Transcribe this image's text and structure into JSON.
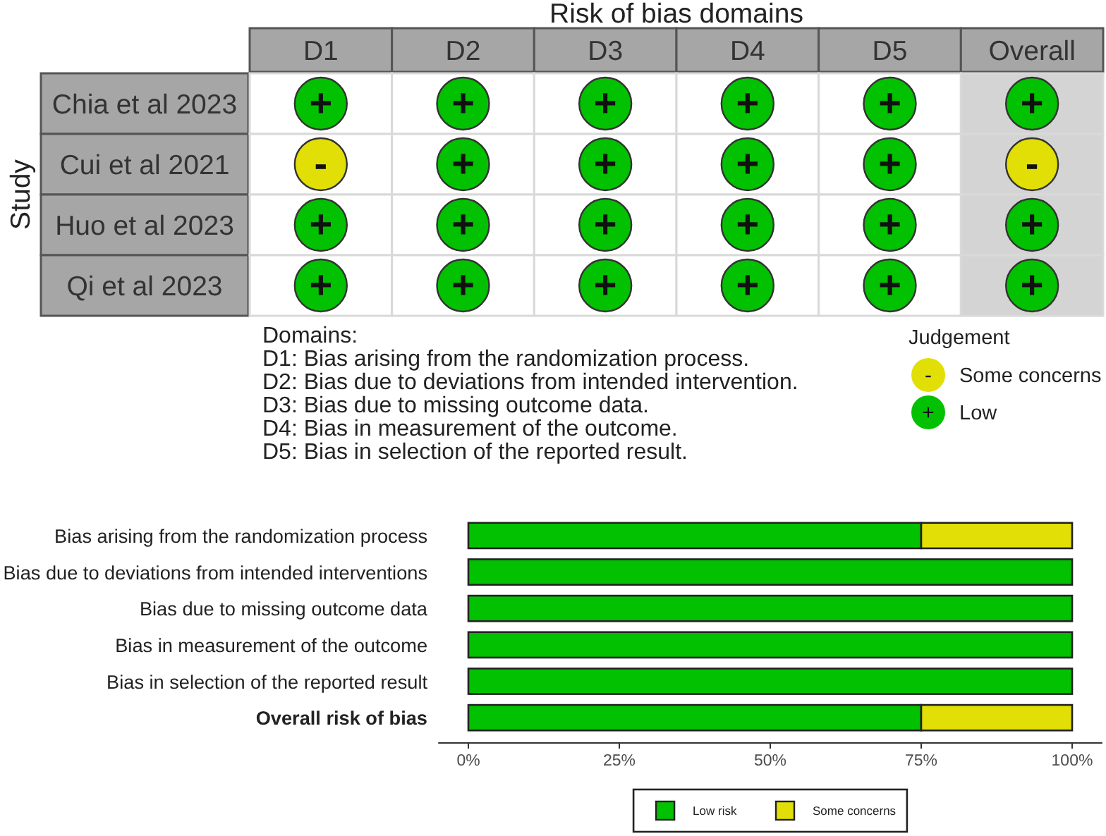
{
  "chart_data": [
    {
      "type": "heatmap",
      "title": "Risk of bias domains",
      "ylabel": "Study",
      "categories": [
        "D1",
        "D2",
        "D3",
        "D4",
        "D5",
        "Overall"
      ],
      "y_categories": [
        "Chia et al 2023",
        "Cui et al 2021",
        "Huo et al 2023",
        "Qi et al 2023"
      ],
      "cells": [
        [
          "+",
          "+",
          "+",
          "+",
          "+",
          "+"
        ],
        [
          "-",
          "+",
          "+",
          "+",
          "+",
          "-"
        ],
        [
          "+",
          "+",
          "+",
          "+",
          "+",
          "+"
        ],
        [
          "+",
          "+",
          "+",
          "+",
          "+",
          "+"
        ]
      ],
      "colors": [
        [
          "#02c100",
          "#02c100",
          "#02c100",
          "#02c100",
          "#02c100",
          "#02c100"
        ],
        [
          "#e2df07",
          "#02c100",
          "#02c100",
          "#02c100",
          "#02c100",
          "#e2df07"
        ],
        [
          "#02c100",
          "#02c100",
          "#02c100",
          "#02c100",
          "#02c100",
          "#02c100"
        ],
        [
          "#02c100",
          "#02c100",
          "#02c100",
          "#02c100",
          "#02c100",
          "#02c100"
        ]
      ],
      "annotations": [
        "Domains:",
        "D1: Bias arising from the randomization process.",
        "D2: Bias due to deviations from intended intervention.",
        "D3: Bias due to missing outcome data.",
        "D4: Bias in measurement of the outcome.",
        "D5: Bias in selection of the reported result."
      ]
    },
    {
      "type": "other",
      "legend_title": "Judgement",
      "legend": "right",
      "series": [
        {
          "name": "Some concerns",
          "color": "#e2df07"
        },
        {
          "name": "Low",
          "color": "#02c100"
        }
      ]
    },
    {
      "type": "bar",
      "orientation": "horizontal",
      "stacked": true,
      "categories": [
        "Bias arising from the randomization process",
        "Bias due to deviations from intended interventions",
        "Bias due to missing outcome data",
        "Bias in measurement of the outcome",
        "Bias in selection of the reported result",
        "Overall risk of bias"
      ],
      "series": [
        {
          "name": "Low risk",
          "color": "#02c100",
          "values": [
            75,
            100,
            100,
            100,
            100,
            75
          ]
        },
        {
          "name": "Some concerns",
          "color": "#e2df07",
          "values": [
            25,
            0,
            0,
            0,
            0,
            25
          ]
        }
      ],
      "xlim": [
        -5,
        105
      ],
      "xticks": [
        {
          "value": 0,
          "label": "0%"
        },
        {
          "value": 25,
          "label": "25%"
        },
        {
          "value": 50,
          "label": "50%"
        },
        {
          "value": 75,
          "label": "75%"
        },
        {
          "value": 100,
          "label": "100%"
        }
      ],
      "legend": "bottom"
    }
  ]
}
